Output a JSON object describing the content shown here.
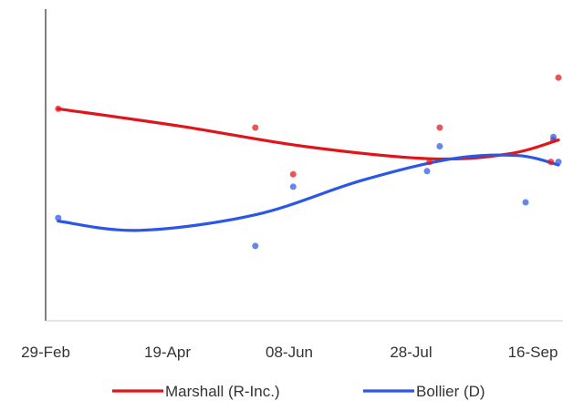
{
  "chart_data": {
    "type": "scatter",
    "title": "",
    "xlabel": "",
    "ylabel": "",
    "x_ticks": [
      "29-Feb",
      "19-Apr",
      "08-Jun",
      "28-Jul",
      "16-Sep"
    ],
    "xlim": [
      "2020-02-27",
      "2020-09-17"
    ],
    "ylim": [
      0,
      100
    ],
    "grid": false,
    "legend_position": "bottom",
    "series": [
      {
        "name": "Marshall (R-Inc.)",
        "color": "#e0151b",
        "points": [
          {
            "x": "2020-03-03",
            "y": 68
          },
          {
            "x": "2020-05-20",
            "y": 62
          },
          {
            "x": "2020-06-04",
            "y": 47
          },
          {
            "x": "2020-07-28",
            "y": 51
          },
          {
            "x": "2020-08-01",
            "y": 62
          },
          {
            "x": "2020-09-14",
            "y": 51
          },
          {
            "x": "2020-09-15",
            "y": 58
          },
          {
            "x": "2020-09-17",
            "y": 78
          }
        ],
        "trend": [
          {
            "x": "2020-03-03",
            "y": 68
          },
          {
            "x": "2020-04-20",
            "y": 62.5
          },
          {
            "x": "2020-06-08",
            "y": 56
          },
          {
            "x": "2020-07-28",
            "y": 52
          },
          {
            "x": "2020-08-28",
            "y": 53.5
          },
          {
            "x": "2020-09-17",
            "y": 58
          }
        ]
      },
      {
        "name": "Bollier (D)",
        "color": "#2b56e6",
        "points": [
          {
            "x": "2020-03-03",
            "y": 33
          },
          {
            "x": "2020-05-20",
            "y": 24
          },
          {
            "x": "2020-06-04",
            "y": 43
          },
          {
            "x": "2020-07-27",
            "y": 48
          },
          {
            "x": "2020-08-01",
            "y": 56
          },
          {
            "x": "2020-09-04",
            "y": 38
          },
          {
            "x": "2020-09-15",
            "y": 59
          },
          {
            "x": "2020-09-17",
            "y": 51
          }
        ],
        "trend": [
          {
            "x": "2020-03-03",
            "y": 32
          },
          {
            "x": "2020-04-04",
            "y": 29
          },
          {
            "x": "2020-05-20",
            "y": 34
          },
          {
            "x": "2020-07-01",
            "y": 45
          },
          {
            "x": "2020-08-06",
            "y": 52
          },
          {
            "x": "2020-09-01",
            "y": 53
          },
          {
            "x": "2020-09-17",
            "y": 50
          }
        ]
      }
    ]
  }
}
